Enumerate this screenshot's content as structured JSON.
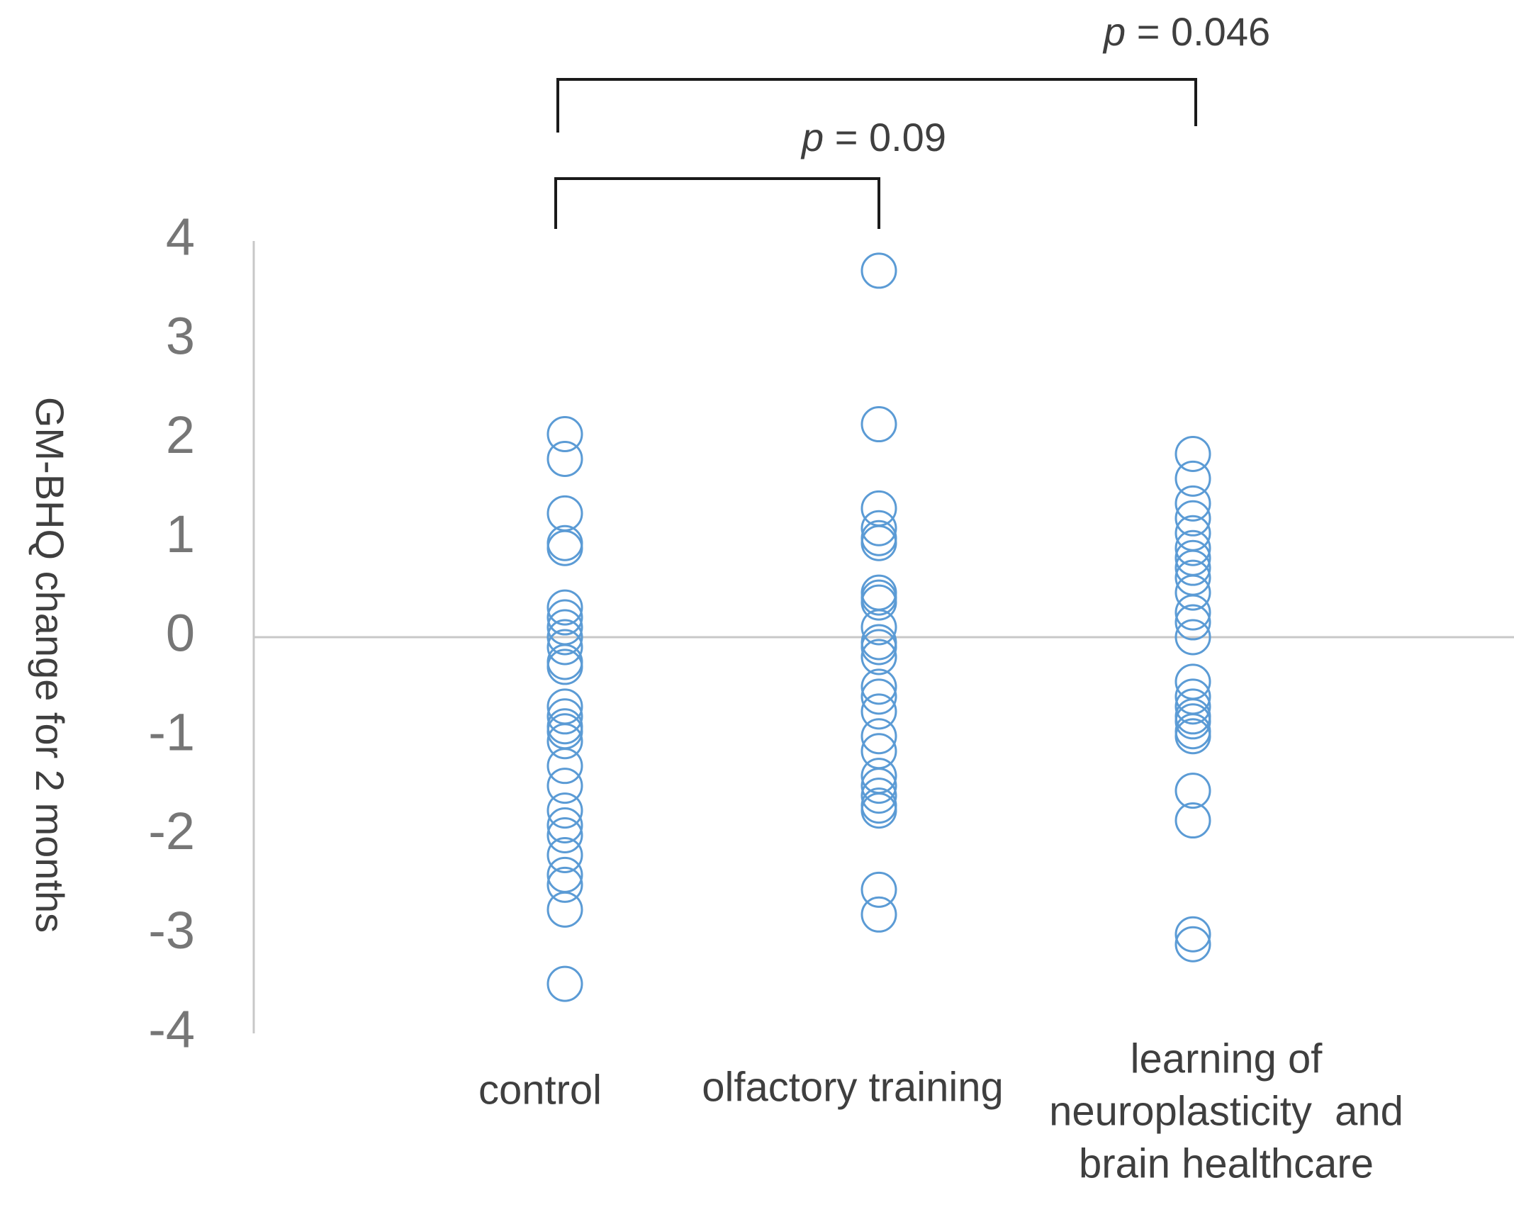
{
  "chart_data": {
    "type": "scatter",
    "title": "",
    "xlabel": "",
    "ylabel": "GM-BHQ change for 2 months",
    "ylim": [
      -4,
      4
    ],
    "yticks": [
      4,
      3,
      2,
      1,
      0,
      -1,
      -2,
      -3,
      -4
    ],
    "ytick_labels": [
      "4",
      "3",
      "2",
      "1",
      "0",
      "-1",
      "-2",
      "-3",
      "-4"
    ],
    "grid": false,
    "categories": [
      [
        "control"
      ],
      [
        "olfactory training"
      ],
      [
        "learning of",
        "neuroplasticity  and",
        "brain healthcare"
      ]
    ],
    "series": [
      {
        "name": "control",
        "values": [
          2.05,
          1.8,
          1.25,
          0.95,
          0.9,
          0.3,
          0.2,
          0.1,
          0.0,
          -0.1,
          -0.25,
          -0.3,
          -0.7,
          -0.8,
          -0.9,
          -0.95,
          -1.05,
          -1.3,
          -1.5,
          -1.75,
          -1.9,
          -2.0,
          -2.2,
          -2.4,
          -2.5,
          -2.75,
          -3.5
        ]
      },
      {
        "name": "olfactory training",
        "values": [
          3.7,
          2.15,
          1.3,
          1.1,
          1.0,
          0.95,
          0.45,
          0.4,
          0.35,
          0.1,
          -0.05,
          -0.1,
          -0.2,
          -0.5,
          -0.6,
          -0.75,
          -1.0,
          -1.15,
          -1.4,
          -1.5,
          -1.6,
          -1.7,
          -1.75,
          -2.55,
          -2.8
        ]
      },
      {
        "name": "learning of neuroplasticity and brain healthcare",
        "values": [
          1.85,
          1.6,
          1.35,
          1.2,
          1.05,
          0.9,
          0.8,
          0.7,
          0.6,
          0.45,
          0.25,
          0.15,
          0.0,
          -0.45,
          -0.6,
          -0.7,
          -0.8,
          -0.85,
          -0.95,
          -1.0,
          -1.55,
          -1.85,
          -3.0,
          -3.1
        ]
      }
    ],
    "comparisons": [
      {
        "from": "control",
        "to": "olfactory training",
        "p_symbol": "p",
        "p_text": " = 0.09"
      },
      {
        "from": "control",
        "to": "learning of neuroplasticity and brain healthcare",
        "p_symbol": "p",
        "p_text": " = 0.046"
      }
    ],
    "colors": {
      "marker": "#5b9bd5",
      "axis": "#c8c8c8",
      "bracket": "#1a1a1a",
      "tick_text": "#767676",
      "label_text": "#3f3f3f"
    }
  }
}
